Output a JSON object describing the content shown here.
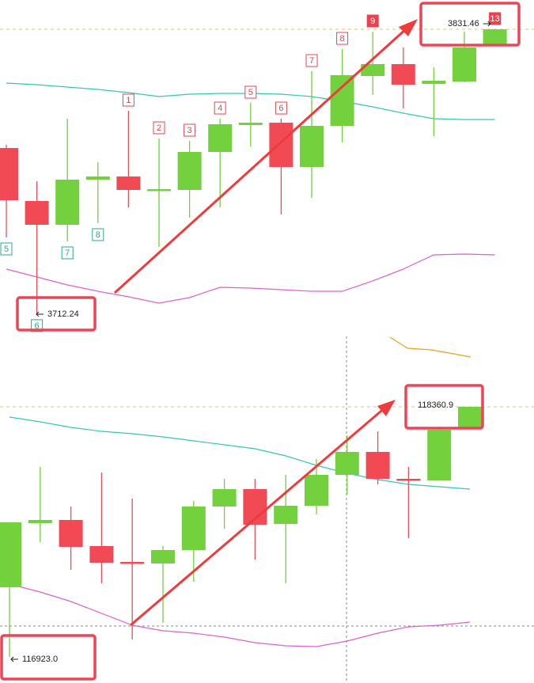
{
  "chart_data": [
    {
      "type": "candlestick",
      "open": [
        3780.45,
        3758.68,
        3748.94,
        3767.46,
        3768.76,
        3762.91,
        3763.23,
        3778.83,
        3789.87,
        3790.85,
        3772.65,
        3789.55,
        3810.02,
        3814.89,
        3806.77,
        3807.74,
        3822.69
      ],
      "high": [
        3781.75,
        3766.81,
        3792.47,
        3774.6,
        3795.72,
        3784.35,
        3783.37,
        3792.47,
        3798.97,
        3792.47,
        3811.97,
        3821.06,
        3828.21,
        3821.71,
        3813.59,
        3828.21,
        3829.19
      ],
      "low": [
        3743.74,
        3712.24,
        3742.11,
        3749.59,
        3756.08,
        3739.84,
        3751.86,
        3756.08,
        3781.1,
        3753.16,
        3759.98,
        3782.72,
        3802.22,
        3796.7,
        3785.32,
        3807.42,
        3822.69
      ],
      "close": [
        3759.01,
        3748.94,
        3767.46,
        3768.76,
        3763.23,
        3763.56,
        3778.83,
        3790.2,
        3790.85,
        3772.65,
        3789.55,
        3810.34,
        3814.89,
        3806.44,
        3808.07,
        3821.71,
        3829.19
      ],
      "bands": [
        {
          "color": "#33c9b0",
          "values": [
            3807.09,
            3806.44,
            3805.47,
            3804.49,
            3803.19,
            3801.57,
            3802.54,
            3802.87,
            3802.87,
            3802.54,
            3801.57,
            3799.62,
            3797.35,
            3794.75,
            3792.47,
            3792.15,
            3792.15
          ]
        },
        {
          "color": "#e060cc",
          "values": [
            3730.74,
            3727.49,
            3724.24,
            3721.64,
            3719.37,
            3716.77,
            3719.05,
            3723.27,
            3722.95,
            3722.3,
            3721.64,
            3721.64,
            3725.87,
            3730.74,
            3736.59,
            3736.91,
            3736.59
          ]
        }
      ],
      "upper_labels": [
        null,
        null,
        null,
        null,
        "1",
        "2",
        "3",
        "4",
        "5",
        "6",
        "7",
        "8",
        "9",
        null,
        null,
        null,
        "13"
      ],
      "upper_label_fill": [
        null,
        null,
        null,
        null,
        null,
        null,
        null,
        null,
        null,
        null,
        null,
        null,
        "#e8434f",
        null,
        null,
        null,
        "#e8434f"
      ],
      "lower_labels": [
        "5",
        "6",
        "7",
        "8",
        null,
        null,
        null,
        null,
        null,
        null,
        null,
        null,
        null,
        null,
        null,
        null,
        null
      ],
      "high_mark": 3831.46,
      "low_mark": 3712.24,
      "up_color": "#72d13c",
      "down_color": "#f24a55",
      "ylim": [
        3701.5,
        3841.21
      ]
    },
    {
      "type": "candlestick",
      "open": [
        117330.73,
        117693.53,
        117711.45,
        117563.64,
        117474.06,
        117465.1,
        117541.24,
        117787.59,
        117886.13,
        117689.05,
        117792.07,
        117966.75,
        118096.64,
        117944.35,
        117935.4,
        118226.53
      ],
      "high": [
        117698.01,
        118011.54,
        117787.59,
        117980.19,
        117832.38,
        117563.64,
        117818.94,
        117944.35,
        117944.35,
        117966.75,
        118056.33,
        118190.7,
        118213.09,
        118011.54,
        118235.49,
        118351.94
      ],
      "low": [
        116936.41,
        117586.03,
        117429.27,
        117353.13,
        117035.12,
        117129.18,
        117362.08,
        117662.18,
        117487.49,
        117353.13,
        117742.8,
        117854.77,
        117913.0,
        117608.43,
        117935.4,
        118226.53
      ],
      "close": [
        117698.01,
        117711.45,
        117559.16,
        117469.58,
        117465.1,
        117541.24,
        117787.59,
        117886.13,
        117684.57,
        117792.07,
        117966.75,
        118096.64,
        117944.35,
        117935.4,
        118222.05,
        118351.94
      ],
      "bands": [
        {
          "color": "#33c9b0",
          "values": [
            118293.72,
            118266.84,
            118235.49,
            118213.09,
            118199.66,
            118181.74,
            118159.35,
            118136.95,
            118114.56,
            118074.24,
            118020.5,
            117975.71,
            117939.87,
            117913.0,
            117899.56,
            117886.13
          ]
        },
        {
          "color": "#e060cc",
          "values": [
            117348.65,
            117303.86,
            117250.11,
            117182.92,
            117115.74,
            117084.38,
            117070.95,
            117048.55,
            117017.2,
            116999.28,
            116994.8,
            117026.14,
            117070.95,
            117106.78,
            117115.74,
            117133.65
          ]
        }
      ],
      "high_mark": 118360.9,
      "low_mark": {
        "value": 116923.0,
        "label": "116923.0"
      },
      "up_color": "#72d13c",
      "down_color": "#f24a55",
      "ylim": [
        116788.77,
        118728.18
      ]
    }
  ]
}
